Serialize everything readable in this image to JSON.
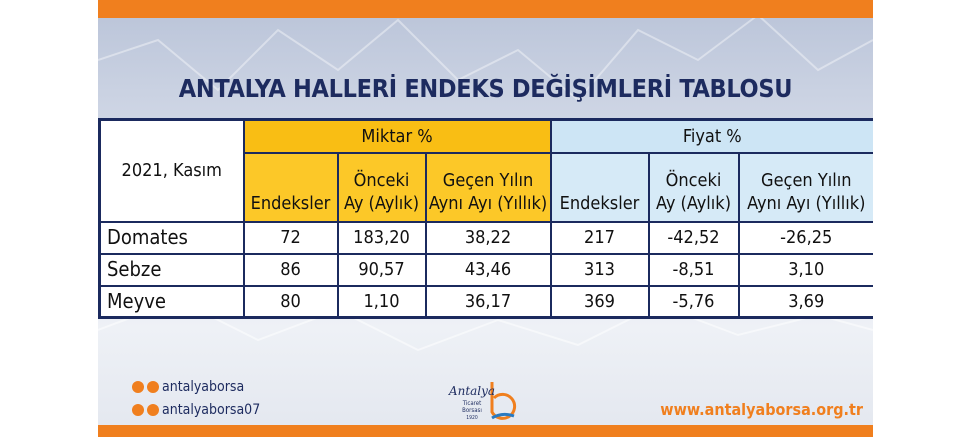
{
  "title": "ANTALYA HALLERİ ENDEKS DEĞİŞİMLERİ TABLOSU",
  "table": {
    "corner": "2021, Kasım",
    "groups": [
      "Miktar %",
      "Fiyat %"
    ],
    "subheaders": [
      "Endeksler",
      "Önceki\nAy (Aylık)",
      "Geçen Yılın\nAynı Ayı (Yıllık)",
      "Endeksler",
      "Önceki\nAy (Aylık)",
      "Geçen Yılın\nAynı Ayı (Yıllık)"
    ],
    "rows": [
      [
        "Domates",
        "72",
        "183,20",
        "38,22",
        "217",
        "-42,52",
        "-26,25"
      ],
      [
        "Sebze",
        "86",
        "90,57",
        "43,46",
        "313",
        "-8,51",
        "3,10"
      ],
      [
        "Meyve",
        "80",
        "1,10",
        "36,17",
        "369",
        "-5,76",
        "3,69"
      ]
    ]
  },
  "footer": {
    "social": [
      "antalyaborsa",
      "antalyaborsa07"
    ],
    "logo": [
      "Antalya",
      "Ticaret",
      "Borsası",
      "1920"
    ],
    "website": "www.antalyaborsa.org.tr"
  }
}
